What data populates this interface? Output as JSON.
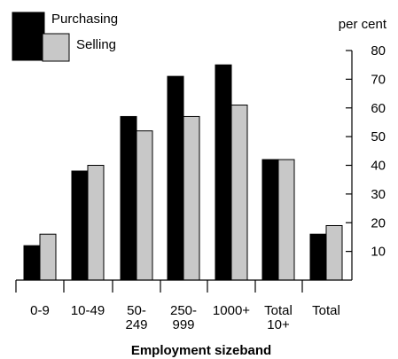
{
  "chart_data": {
    "type": "bar",
    "categories": [
      {
        "lines": [
          "0-9"
        ]
      },
      {
        "lines": [
          "10-49"
        ]
      },
      {
        "lines": [
          "50-",
          "249"
        ]
      },
      {
        "lines": [
          "250-",
          "999"
        ]
      },
      {
        "lines": [
          "1000+"
        ]
      },
      {
        "lines": [
          "Total",
          "10+"
        ]
      },
      {
        "lines": [
          "Total"
        ]
      }
    ],
    "series": [
      {
        "name": "Purchasing",
        "color": "#000000",
        "values": [
          12,
          38,
          57,
          71,
          75,
          42,
          16
        ]
      },
      {
        "name": "Selling",
        "color": "#c8c8c8",
        "values": [
          16,
          40,
          52,
          57,
          61,
          42,
          19
        ]
      }
    ],
    "xlabel": "Employment sizeband",
    "ylabel": "per cent",
    "ylim": [
      0,
      80
    ],
    "yticks": [
      10,
      20,
      30,
      40,
      50,
      60,
      70,
      80
    ],
    "y_axis_side": "right",
    "legend_position": "top-left"
  }
}
